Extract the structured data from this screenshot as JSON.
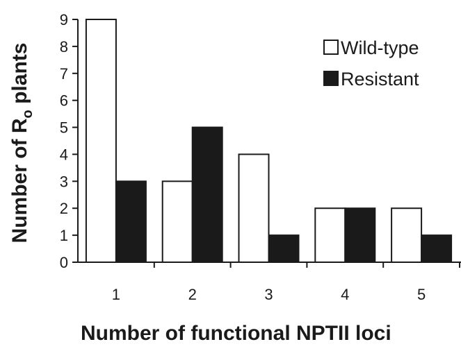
{
  "chart_data": {
    "type": "bar",
    "categories": [
      "1",
      "2",
      "3",
      "4",
      "5"
    ],
    "series": [
      {
        "name": "Wild-type",
        "values": [
          9,
          3,
          4,
          2,
          2
        ],
        "color": "#ffffff"
      },
      {
        "name": "Resistant",
        "values": [
          3,
          5,
          1,
          2,
          1
        ],
        "color": "#1a1a1a"
      }
    ],
    "xlabel": "Number of functional NPTII loci",
    "ylabel_main": "Number of R",
    "ylabel_sub": "o",
    "ylabel_tail": " plants",
    "ylim": [
      0,
      9
    ],
    "yticks": [
      "0",
      "1",
      "2",
      "3",
      "4",
      "5",
      "6",
      "7",
      "8",
      "9"
    ],
    "grid": false,
    "legend_position": "top-right"
  }
}
